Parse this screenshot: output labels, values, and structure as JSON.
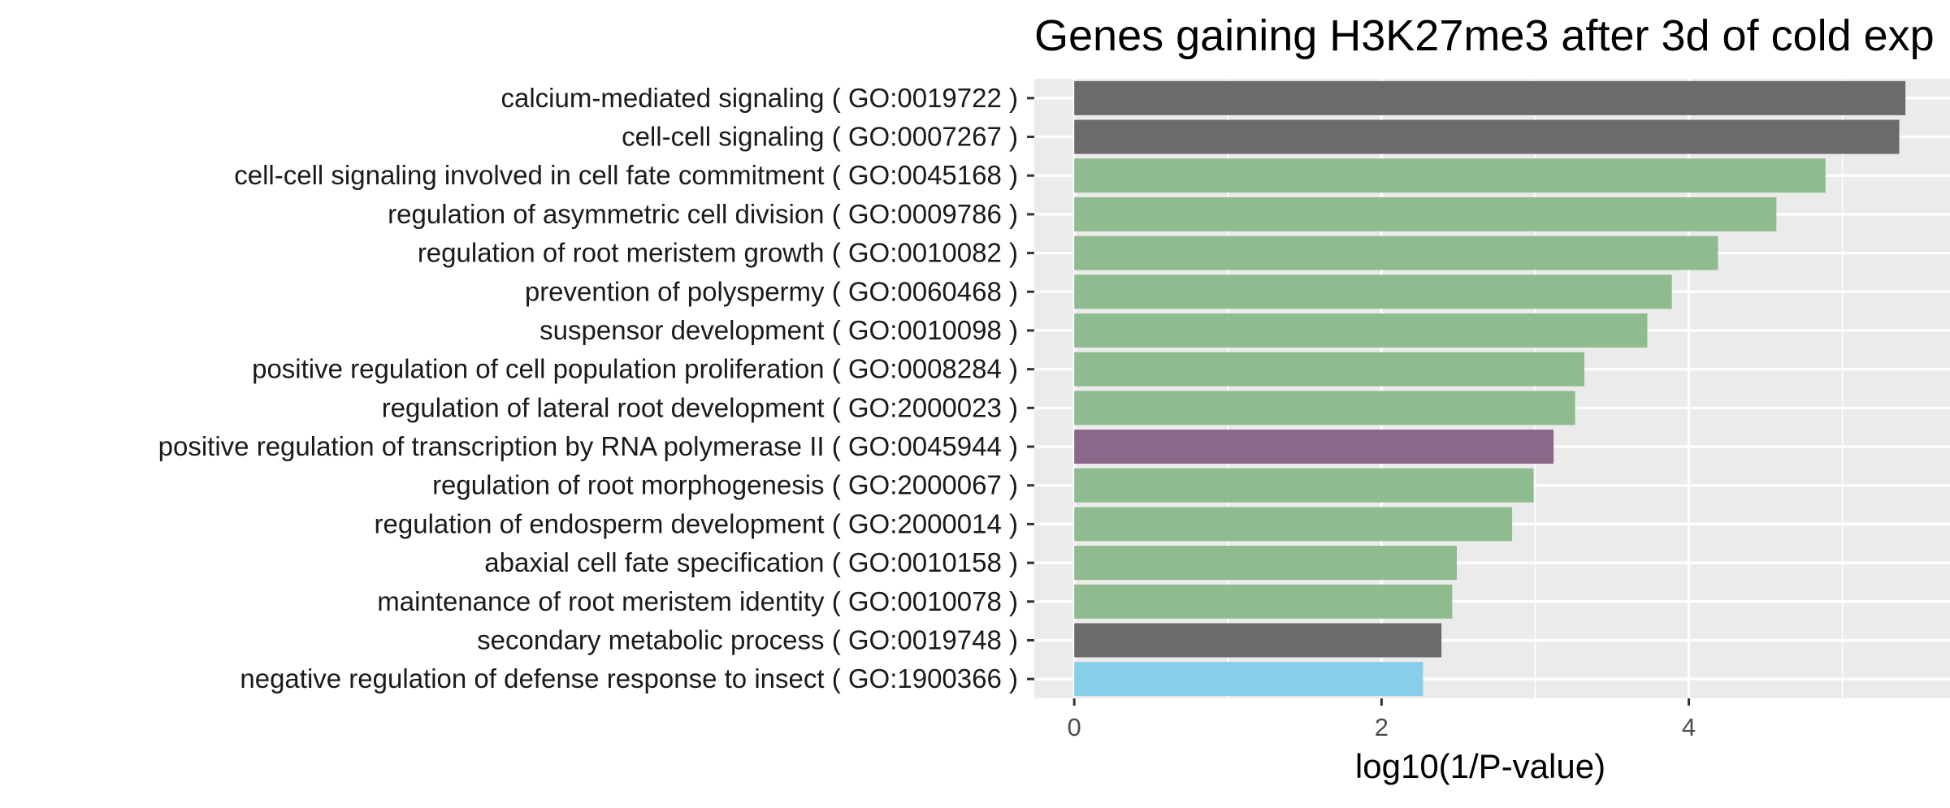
{
  "chart_data": {
    "type": "bar",
    "orientation": "horizontal",
    "title": "Genes gaining H3K27me3 after 3d of cold exp",
    "xlabel": "log10(1/P-value)",
    "ylabel": "",
    "xlim": [
      -0.26,
      5.7
    ],
    "xticks": [
      0,
      2,
      4
    ],
    "grid": true,
    "legend": "none",
    "panel_color": "#EBEBEB",
    "categories": [
      "calcium-mediated signaling ( GO:0019722 )",
      "cell-cell signaling ( GO:0007267 )",
      "cell-cell signaling involved in cell fate commitment ( GO:0045168 )",
      "regulation of asymmetric cell division ( GO:0009786 )",
      "regulation of root meristem growth ( GO:0010082 )",
      "prevention of polyspermy ( GO:0060468 )",
      "suspensor development ( GO:0010098 )",
      "positive regulation of cell population proliferation ( GO:0008284 )",
      "regulation of lateral root development ( GO:2000023 )",
      "positive regulation of transcription by RNA polymerase II ( GO:0045944 )",
      "regulation of root morphogenesis ( GO:2000067 )",
      "regulation of endosperm development ( GO:2000014 )",
      "abaxial cell fate specification ( GO:0010158 )",
      "maintenance of root meristem identity ( GO:0010078 )",
      "secondary metabolic process ( GO:0019748 )",
      "negative regulation of defense response to insect ( GO:1900366 )"
    ],
    "values": [
      5.41,
      5.37,
      4.89,
      4.57,
      4.19,
      3.89,
      3.73,
      3.32,
      3.26,
      3.12,
      2.99,
      2.85,
      2.49,
      2.46,
      2.39,
      2.27
    ],
    "colors": [
      "#6B6B6B",
      "#6B6B6B",
      "#8FBC8F",
      "#8FBC8F",
      "#8FBC8F",
      "#8FBC8F",
      "#8FBC8F",
      "#8FBC8F",
      "#8FBC8F",
      "#8B6789",
      "#8FBC8F",
      "#8FBC8F",
      "#8FBC8F",
      "#8FBC8F",
      "#6B6B6B",
      "#87CEEB"
    ]
  }
}
